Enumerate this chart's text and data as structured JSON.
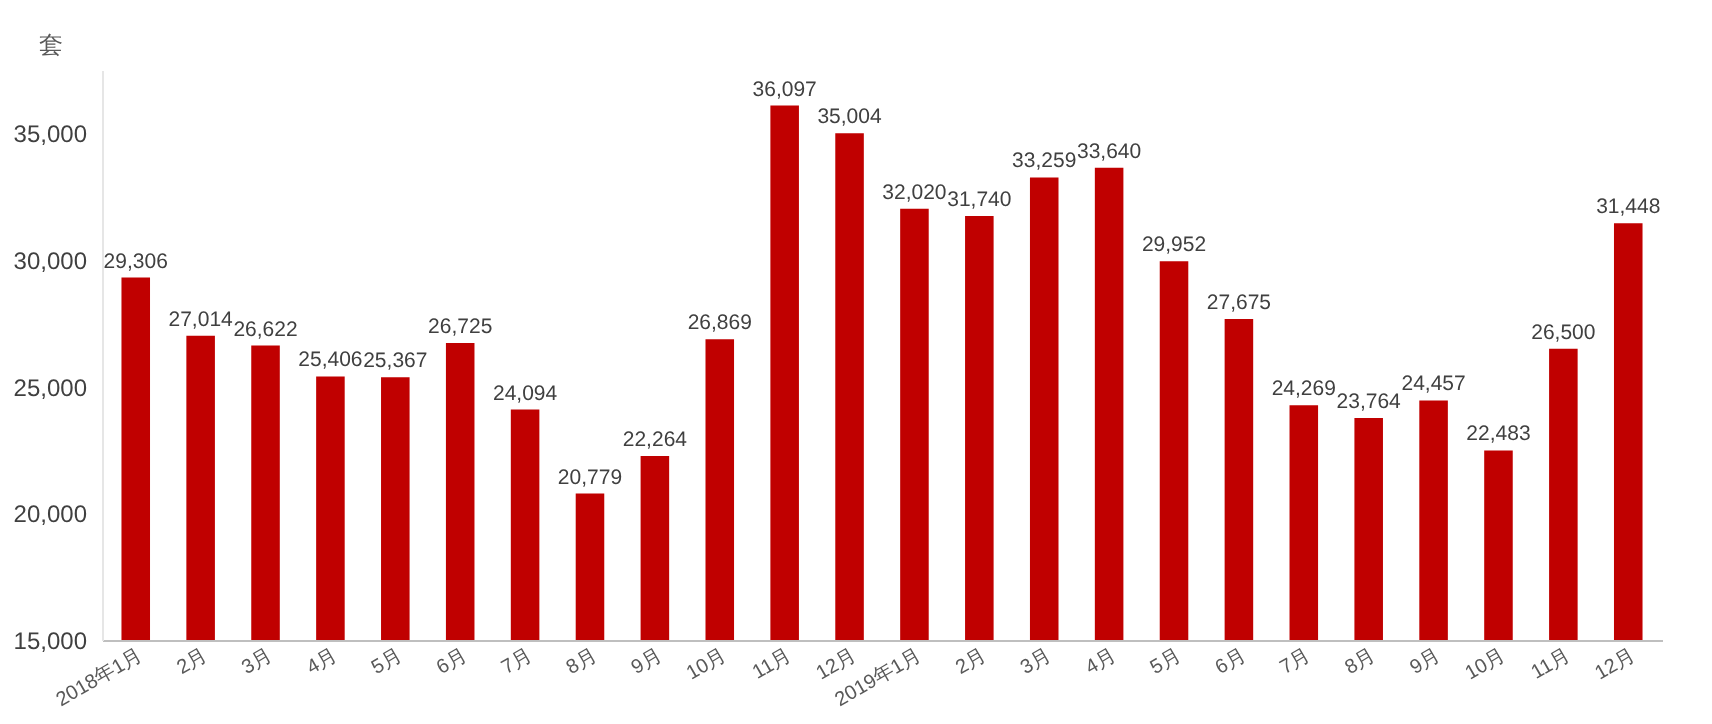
{
  "chart_data": {
    "type": "bar",
    "ylabel": "套",
    "categories": [
      "2018年1月",
      "2月",
      "3月",
      "4月",
      "5月",
      "6月",
      "7月",
      "8月",
      "9月",
      "10月",
      "11月",
      "12月",
      "2019年1月",
      "2月",
      "3月",
      "4月",
      "5月",
      "6月",
      "7月",
      "8月",
      "9月",
      "10月",
      "11月",
      "12月"
    ],
    "values": [
      29306,
      27014,
      26622,
      25406,
      25367,
      26725,
      24094,
      20779,
      22264,
      26869,
      36097,
      35004,
      32020,
      31740,
      33259,
      33640,
      29952,
      27675,
      24269,
      23764,
      24457,
      22483,
      26500,
      31448
    ],
    "value_labels": [
      "29,306",
      "27,014",
      "26,622",
      "25,406",
      "25,367",
      "26,725",
      "24,094",
      "20,779",
      "22,264",
      "26,869",
      "36,097",
      "35,004",
      "32,020",
      "31,740",
      "33,259",
      "33,640",
      "29,952",
      "27,675",
      "24,269",
      "23,764",
      "24,457",
      "22,483",
      "26,500",
      "31,448"
    ],
    "color": "#c00000",
    "ylim": [
      15000,
      37500
    ],
    "yticks": [
      {
        "value": 15000,
        "label": "15,000"
      },
      {
        "value": 20000,
        "label": "20,000"
      },
      {
        "value": 25000,
        "label": "25,000"
      },
      {
        "value": 30000,
        "label": "30,000"
      },
      {
        "value": 35000,
        "label": "35,000"
      }
    ],
    "grid": false
  }
}
